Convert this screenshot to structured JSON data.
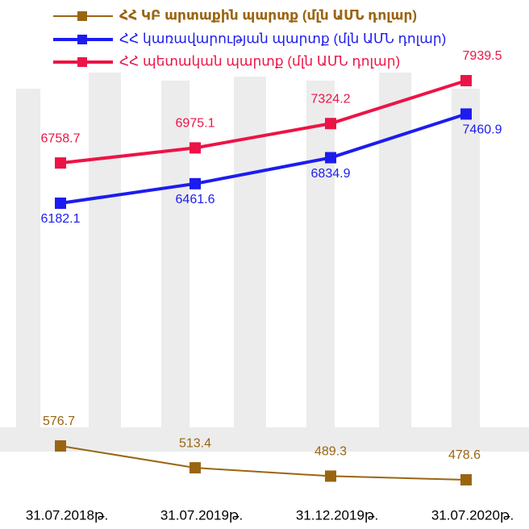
{
  "chart_data": {
    "type": "line",
    "categories": [
      "31.07.2018թ.",
      "31.07.2019թ.",
      "31.12.2019թ.",
      "31.07.2020թ."
    ],
    "series": [
      {
        "name": "ՀՀ ԿԲ արտաքին պարտք (մլն ԱՄՆ դոլար)",
        "color": "#9a6511",
        "values": [
          576.7,
          513.4,
          489.3,
          478.6
        ]
      },
      {
        "name": "ՀՀ կառավարության պարտք (մլն ԱՄՆ դոլար)",
        "color": "#1c1cf0",
        "values": [
          6182.1,
          6461.6,
          6834.9,
          7460.9
        ]
      },
      {
        "name": "ՀՀ պետական պարտք (մլն ԱՄՆ դոլար)",
        "color": "#ec1446",
        "values": [
          6758.7,
          6975.1,
          7324.2,
          7939.5
        ]
      }
    ],
    "legend": "top"
  }
}
